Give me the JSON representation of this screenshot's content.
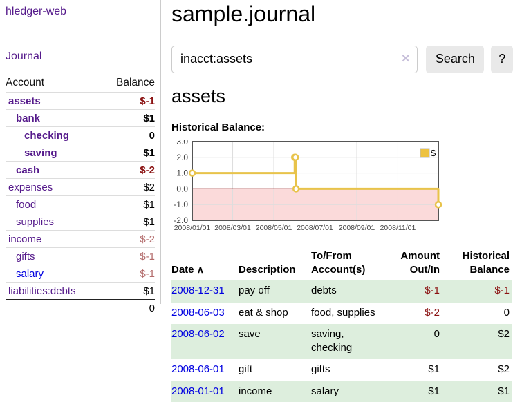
{
  "app": {
    "title": "hledger-web"
  },
  "sidebar": {
    "journal_link": "Journal",
    "accounts": {
      "col_account": "Account",
      "col_balance": "Balance",
      "rows": [
        {
          "name": "assets",
          "balance": "$-1",
          "indent": 1,
          "bold": true,
          "name_color": "purple",
          "balance_color": "darkred"
        },
        {
          "name": "bank",
          "balance": "$1",
          "indent": 2,
          "bold": true,
          "name_color": "purple",
          "balance_color": "black"
        },
        {
          "name": "checking",
          "balance": "0",
          "indent": 3,
          "bold": true,
          "name_color": "purple",
          "balance_color": "black"
        },
        {
          "name": "saving",
          "balance": "$1",
          "indent": 3,
          "bold": true,
          "name_color": "purple",
          "balance_color": "black"
        },
        {
          "name": "cash",
          "balance": "$-2",
          "indent": 2,
          "bold": true,
          "name_color": "purple",
          "balance_color": "darkred"
        },
        {
          "name": "expenses",
          "balance": "$2",
          "indent": 1,
          "bold": false,
          "name_color": "purple",
          "balance_color": "black"
        },
        {
          "name": "food",
          "balance": "$1",
          "indent": 2,
          "bold": false,
          "name_color": "purple",
          "balance_color": "black"
        },
        {
          "name": "supplies",
          "balance": "$1",
          "indent": 2,
          "bold": false,
          "name_color": "purple",
          "balance_color": "black"
        },
        {
          "name": "income",
          "balance": "$-2",
          "indent": 1,
          "bold": false,
          "name_color": "purple",
          "balance_color": "fadedred"
        },
        {
          "name": "gifts",
          "balance": "$-1",
          "indent": 2,
          "bold": false,
          "name_color": "purple",
          "balance_color": "fadedred"
        },
        {
          "name": "salary",
          "balance": "$-1",
          "indent": 2,
          "bold": false,
          "name_color": "blue",
          "balance_color": "fadedred"
        },
        {
          "name": "liabilities:debts",
          "balance": "$1",
          "indent": 1,
          "bold": false,
          "name_color": "purple",
          "balance_color": "black"
        }
      ],
      "total": "0"
    }
  },
  "main": {
    "title": "sample.journal",
    "search": {
      "value": "inacct:assets",
      "clear_icon": "✕",
      "button": "Search",
      "help_button": "?"
    },
    "account_heading": "assets",
    "register": {
      "columns": [
        "Date",
        "Description",
        "To/From Account(s)",
        "Amount Out/In",
        "Historical Balance"
      ],
      "sort_indicator": "∧",
      "rows": [
        {
          "date": "2008-12-31",
          "description": "pay off",
          "accounts": "debts",
          "amount": "$-1",
          "balance": "$-1"
        },
        {
          "date": "2008-06-03",
          "description": "eat & shop",
          "accounts": "food, supplies",
          "amount": "$-2",
          "balance": "0"
        },
        {
          "date": "2008-06-02",
          "description": "save",
          "accounts": "saving, checking",
          "amount": "0",
          "balance": "$2"
        },
        {
          "date": "2008-06-01",
          "description": "gift",
          "accounts": "gifts",
          "amount": "$1",
          "balance": "$2"
        },
        {
          "date": "2008-01-01",
          "description": "income",
          "accounts": "salary",
          "amount": "$1",
          "balance": "$1"
        }
      ]
    }
  },
  "chart_data": {
    "type": "line",
    "step": true,
    "title": "Historical Balance:",
    "series": [
      {
        "name": "$",
        "points": [
          [
            "2008-01-01",
            1
          ],
          [
            "2008-06-01",
            2
          ],
          [
            "2008-06-02",
            2
          ],
          [
            "2008-06-03",
            0
          ],
          [
            "2008-12-31",
            -1
          ]
        ]
      }
    ],
    "xlim": [
      "2008-01-01",
      "2008-12-31"
    ],
    "ylim": [
      -2,
      3
    ],
    "x_ticks": [
      {
        "date": "2008-01-01",
        "label": "2008/01/01"
      },
      {
        "date": "2008-03-01",
        "label": "2008/03/01"
      },
      {
        "date": "2008-05-01",
        "label": "2008/05/01"
      },
      {
        "date": "2008-07-01",
        "label": "2008/07/01"
      },
      {
        "date": "2008-09-01",
        "label": "2008/09/01"
      },
      {
        "date": "2008-11-01",
        "label": "2008/11/01"
      }
    ],
    "y_ticks": [
      {
        "value": 3,
        "label": "3.0"
      },
      {
        "value": 2,
        "label": "2.0"
      },
      {
        "value": 1,
        "label": "1.0"
      },
      {
        "value": 0,
        "label": "0.0"
      },
      {
        "value": -1,
        "label": "-1.0"
      },
      {
        "value": -2,
        "label": "-2.0"
      }
    ],
    "legend_position": "top-right",
    "grid": true,
    "colors": {
      "line": "#e8c34a",
      "legend_fill": "#edc240",
      "marker_fill": "#ffffff",
      "negative_fill": "#fbdada",
      "zero_line": "#8b0000",
      "border": "#555555",
      "grid": "#dddddd",
      "tick_text": "#444444"
    }
  }
}
